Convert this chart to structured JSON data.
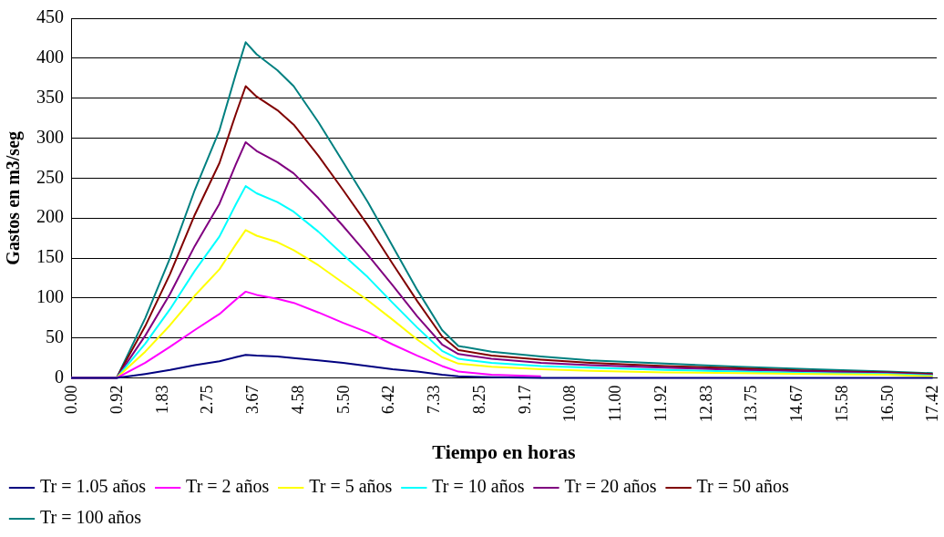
{
  "chart_data": {
    "type": "line",
    "xlabel": "Tiempo en horas",
    "ylabel": "Gastos en m3/seg",
    "x": [
      0,
      0.92,
      1.5,
      2.0,
      2.5,
      3.0,
      3.33,
      3.53,
      3.75,
      4.17,
      4.5,
      5.0,
      5.5,
      6.0,
      6.5,
      7.0,
      7.5,
      7.83,
      8.5,
      9.5,
      10.5,
      12,
      13.5,
      15,
      16.5,
      17.42
    ],
    "series": [
      {
        "name": "Tr = 1.05 años",
        "color": "#000080",
        "values": [
          0,
          0,
          5,
          10,
          16,
          21,
          26,
          29,
          28,
          27,
          25,
          22,
          19,
          15,
          11,
          8,
          4,
          2,
          1,
          0,
          0,
          0,
          0,
          0,
          0,
          0
        ]
      },
      {
        "name": "Tr = 2 años",
        "color": "#ff00ff",
        "values": [
          0,
          0,
          19,
          39,
          60,
          80,
          98,
          108,
          104,
          99,
          94,
          82,
          69,
          57,
          42,
          28,
          15,
          8,
          4,
          2,
          null,
          null,
          null,
          null,
          null,
          null
        ]
      },
      {
        "name": "Tr = 5 años",
        "color": "#ffff00",
        "values": [
          0,
          0,
          33,
          66,
          103,
          136,
          167,
          185,
          178,
          170,
          160,
          141,
          119,
          97,
          73,
          48,
          26,
          18,
          14,
          11,
          9,
          7,
          6,
          5,
          4,
          2
        ]
      },
      {
        "name": "Tr = 10 años",
        "color": "#00ffff",
        "values": [
          0,
          0,
          43,
          86,
          134,
          177,
          217,
          240,
          231,
          220,
          208,
          183,
          154,
          126,
          94,
          63,
          34,
          24,
          19,
          15,
          13,
          10,
          8,
          6,
          5,
          3
        ]
      },
      {
        "name": "Tr = 20 años",
        "color": "#800080",
        "values": [
          0,
          0,
          53,
          105,
          165,
          218,
          267,
          295,
          284,
          270,
          256,
          225,
          190,
          154,
          116,
          77,
          42,
          30,
          24,
          19,
          16,
          13,
          10,
          8,
          6,
          4
        ]
      },
      {
        "name": "Tr = 50 años",
        "color": "#800000",
        "values": [
          0,
          0,
          65,
          130,
          204,
          269,
          330,
          365,
          352,
          335,
          317,
          278,
          235,
          191,
          143,
          96,
          52,
          35,
          28,
          23,
          19,
          15,
          12,
          9,
          7,
          5
        ]
      },
      {
        "name": "Tr = 100 años",
        "color": "#008080",
        "values": [
          0,
          0,
          75,
          150,
          235,
          310,
          380,
          420,
          405,
          385,
          365,
          320,
          270,
          220,
          165,
          110,
          60,
          40,
          33,
          27,
          22,
          18,
          14,
          11,
          8,
          6
        ]
      }
    ],
    "xlim": [
      0,
      17.5
    ],
    "xticks": [
      {
        "value": 0,
        "label": "0.00"
      },
      {
        "value": 0.9167,
        "label": "0.92"
      },
      {
        "value": 1.8333,
        "label": "1.83"
      },
      {
        "value": 2.75,
        "label": "2.75"
      },
      {
        "value": 3.6667,
        "label": "3.67"
      },
      {
        "value": 4.5833,
        "label": "4.58"
      },
      {
        "value": 5.5,
        "label": "5.50"
      },
      {
        "value": 6.4167,
        "label": "6.42"
      },
      {
        "value": 7.3333,
        "label": "7.33"
      },
      {
        "value": 8.25,
        "label": "8.25"
      },
      {
        "value": 9.1667,
        "label": "9.17"
      },
      {
        "value": 10.0833,
        "label": "10.08"
      },
      {
        "value": 11,
        "label": "11.00"
      },
      {
        "value": 11.9167,
        "label": "11.92"
      },
      {
        "value": 12.8333,
        "label": "12.83"
      },
      {
        "value": 13.75,
        "label": "13.75"
      },
      {
        "value": 14.6667,
        "label": "14.67"
      },
      {
        "value": 15.5833,
        "label": "15.58"
      },
      {
        "value": 16.5,
        "label": "16.50"
      },
      {
        "value": 17.4167,
        "label": "17.42"
      }
    ],
    "ylim": [
      0,
      450
    ],
    "yticks": [
      0,
      50,
      100,
      150,
      200,
      250,
      300,
      350,
      400,
      450
    ],
    "grid": "y",
    "legend": "bottom",
    "marker": "none",
    "line_style": "solid"
  }
}
